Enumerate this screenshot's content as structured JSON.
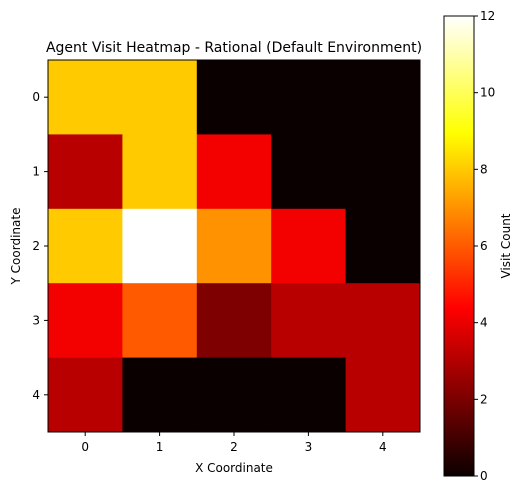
{
  "chart_data": {
    "type": "heatmap",
    "title": "Agent Visit Heatmap - Rational (Default Environment)",
    "xlabel": "X Coordinate",
    "ylabel": "Y Coordinate",
    "x_ticks": [
      "0",
      "1",
      "2",
      "3",
      "4"
    ],
    "y_ticks": [
      "0",
      "1",
      "2",
      "3",
      "4"
    ],
    "values": [
      [
        8,
        8,
        0,
        0,
        0
      ],
      [
        3,
        8,
        4,
        0,
        0
      ],
      [
        8,
        12,
        7,
        4,
        0
      ],
      [
        4,
        6,
        2,
        3,
        3
      ],
      [
        3,
        0,
        0,
        0,
        3
      ]
    ],
    "colormap": "hot",
    "vmin": 0,
    "vmax": 12,
    "colorbar": {
      "label": "Visit Count",
      "ticks": [
        "0",
        "2",
        "4",
        "6",
        "8",
        "10",
        "12"
      ]
    },
    "grid": false
  }
}
